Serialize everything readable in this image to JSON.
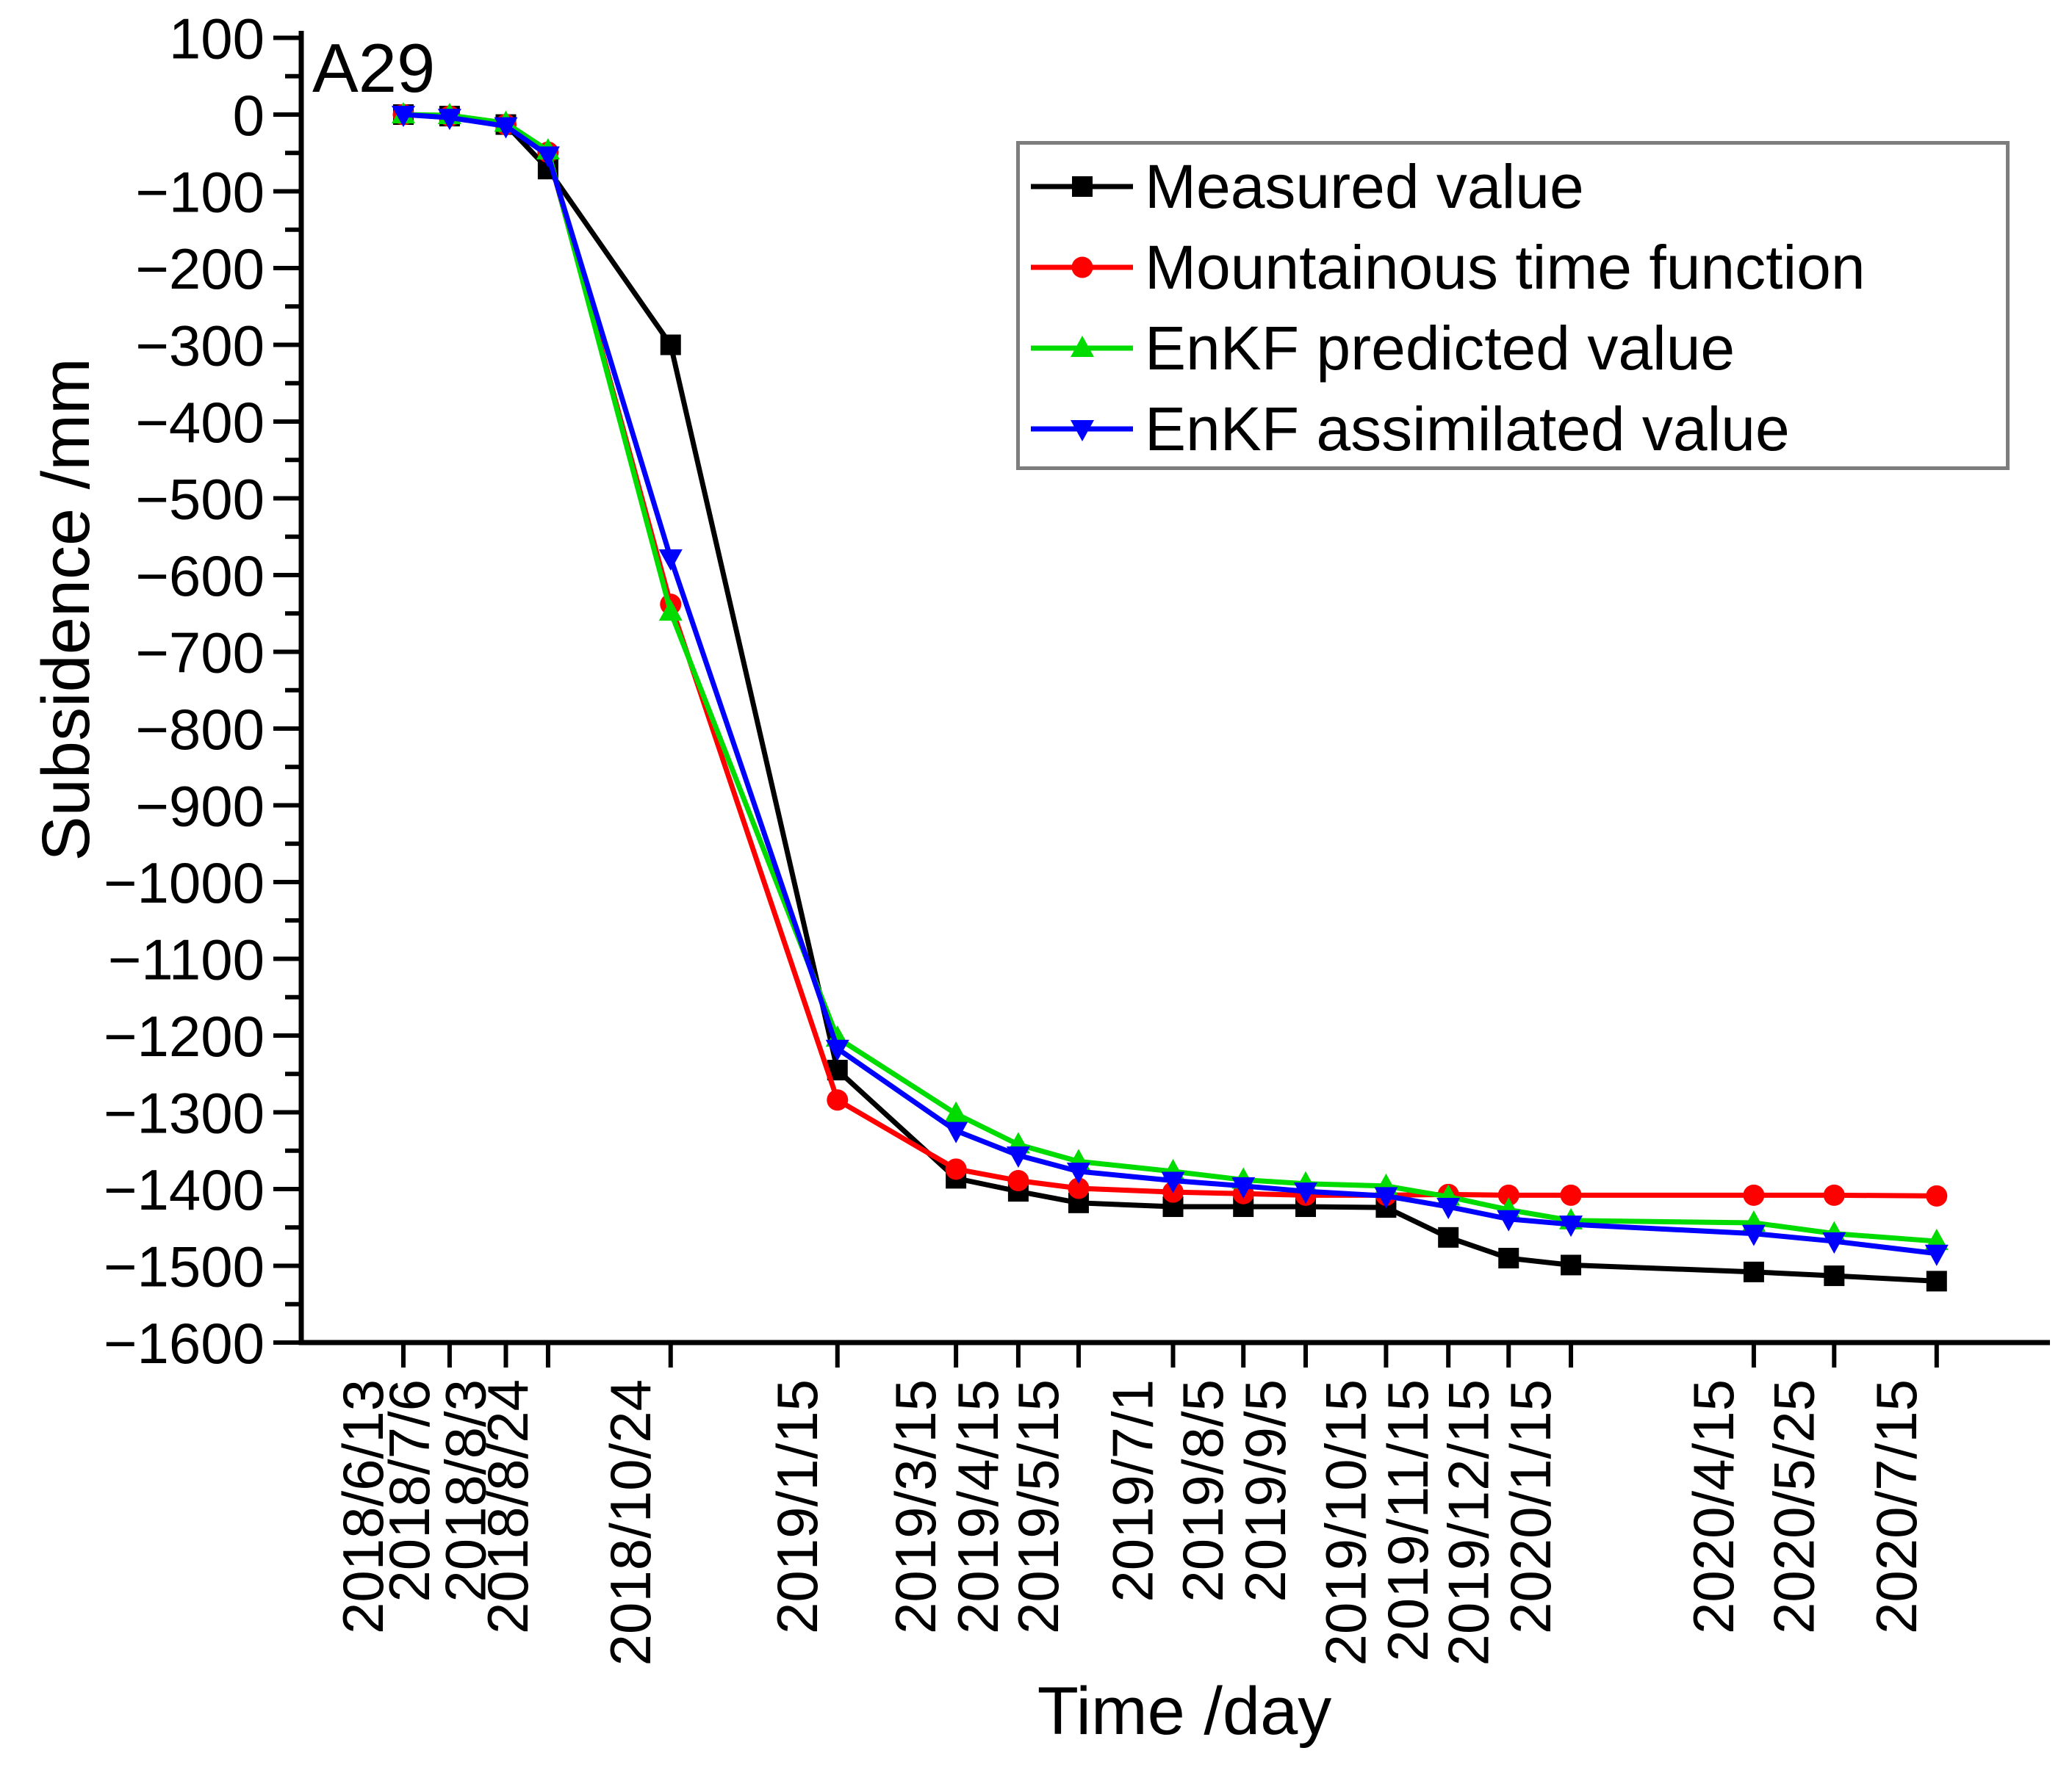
{
  "page": {
    "background": "#FFFFFF"
  },
  "chart_data": {
    "type": "line",
    "title": "A29",
    "xlabel": "Time /day",
    "ylabel": "Subsidence /mm",
    "grid": false,
    "legend_position": "top-right",
    "legend_border_color": "#7D7D7D",
    "ylim": [
      -1600,
      100
    ],
    "y_ticks": [
      100,
      0,
      -100,
      -200,
      -300,
      -400,
      -500,
      -600,
      -700,
      -800,
      -900,
      -1000,
      -1100,
      -1200,
      -1300,
      -1400,
      -1500,
      -1600
    ],
    "y_minor_tick_step": 50,
    "x_tick_labels": [
      "2018/6/13",
      "2018/7/6",
      "2018/8/3",
      "2018/8/24",
      "2018/10/24",
      "2019/1/15",
      "2019/3/15",
      "2019/4/15",
      "2019/5/15",
      "2019/7/1",
      "2019/8/5",
      "2019/9/5",
      "2019/10/15",
      "2019/11/15",
      "2019/12/15",
      "2020/1/15",
      "2020/4/15",
      "2020/5/25",
      "2020/7/15"
    ],
    "x_days": [
      0,
      23,
      51,
      72,
      133,
      216,
      275,
      306,
      336,
      383,
      418,
      449,
      489,
      520,
      550,
      581,
      672,
      712,
      763
    ],
    "series": [
      {
        "name": "Measured value",
        "color": "#000000",
        "marker": "square",
        "values": [
          0,
          -2,
          -13,
          -71,
          -300,
          -1245,
          -1386,
          -1403,
          -1418,
          -1423,
          -1423,
          -1423,
          -1424,
          -1463,
          -1490,
          -1499,
          -1508,
          -1513,
          -1520
        ]
      },
      {
        "name": "Mountainous time function",
        "color": "#FF0000",
        "marker": "circle",
        "values": [
          0,
          -2,
          -13,
          -49,
          -638,
          -1284,
          -1374,
          -1389,
          -1399,
          -1404,
          -1406,
          -1408,
          -1408,
          -1407,
          -1408,
          -1408,
          -1408,
          -1408,
          -1409
        ]
      },
      {
        "name": "EnKF predicted value",
        "color": "#00DC00",
        "marker": "triangle-up",
        "values": [
          0,
          -1,
          -11,
          -47,
          -648,
          -1203,
          -1302,
          -1342,
          -1364,
          -1377,
          -1388,
          -1393,
          -1396,
          -1410,
          -1427,
          -1441,
          -1444,
          -1458,
          -1468
        ]
      },
      {
        "name": "EnKF assimilated value",
        "color": "#0000FF",
        "marker": "triangle-down",
        "values": [
          0,
          -4,
          -15,
          -53,
          -578,
          -1217,
          -1324,
          -1356,
          -1377,
          -1389,
          -1396,
          -1403,
          -1409,
          -1423,
          -1439,
          -1446,
          -1458,
          -1468,
          -1484
        ]
      }
    ]
  }
}
